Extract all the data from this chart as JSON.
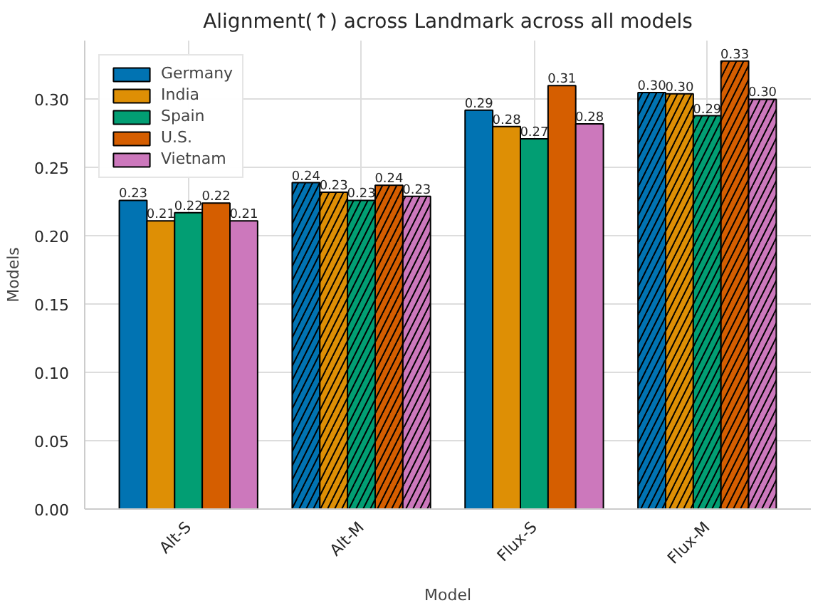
{
  "chart_data": {
    "type": "bar",
    "title": "Alignment(↑) across Landmark across all models",
    "xlabel": "Model",
    "ylabel": "Models",
    "categories": [
      "Alt-S",
      "Alt-M",
      "Flux-S",
      "Flux-M"
    ],
    "series": [
      {
        "name": "Germany",
        "color": "#0173b2",
        "values": [
          0.226,
          0.239,
          0.292,
          0.305
        ],
        "value_labels": [
          "0.23",
          "0.24",
          "0.29",
          "0.30"
        ]
      },
      {
        "name": "India",
        "color": "#de8f05",
        "values": [
          0.211,
          0.232,
          0.28,
          0.304
        ],
        "value_labels": [
          "0.21",
          "0.23",
          "0.28",
          "0.30"
        ]
      },
      {
        "name": "Spain",
        "color": "#029e73",
        "values": [
          0.217,
          0.226,
          0.271,
          0.288
        ],
        "value_labels": [
          "0.22",
          "0.23",
          "0.27",
          "0.29"
        ]
      },
      {
        "name": "U.S.",
        "color": "#d55e00",
        "values": [
          0.224,
          0.237,
          0.31,
          0.328
        ],
        "value_labels": [
          "0.22",
          "0.24",
          "0.31",
          "0.33"
        ]
      },
      {
        "name": "Vietnam",
        "color": "#cc78bc",
        "values": [
          0.211,
          0.229,
          0.282,
          0.3
        ],
        "value_labels": [
          "0.21",
          "0.23",
          "0.28",
          "0.30"
        ]
      }
    ],
    "ylim": [
      0,
      0.343
    ],
    "yticks": [
      {
        "value": 0,
        "label": "0.00"
      },
      {
        "value": 0.05,
        "label": "0.05"
      },
      {
        "value": 0.1,
        "label": "0.10"
      },
      {
        "value": 0.15,
        "label": "0.15"
      },
      {
        "value": 0.2,
        "label": "0.20"
      },
      {
        "value": 0.25,
        "label": "0.25"
      },
      {
        "value": 0.3,
        "label": "0.30"
      }
    ],
    "grid": true,
    "legend": "top left"
  }
}
